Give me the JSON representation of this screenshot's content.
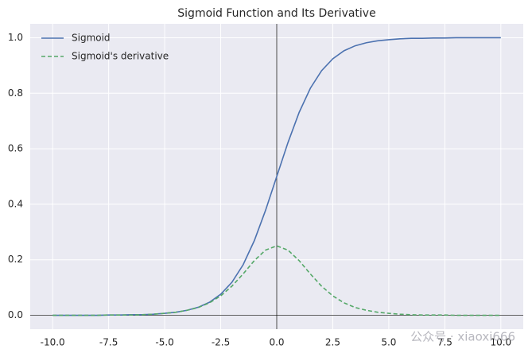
{
  "chart_data": {
    "type": "line",
    "title": "Sigmoid Function and Its Derivative",
    "x": [
      -10,
      -9.5,
      -9,
      -8.5,
      -8,
      -7.5,
      -7,
      -6.5,
      -6,
      -5.5,
      -5,
      -4.5,
      -4,
      -3.5,
      -3,
      -2.5,
      -2,
      -1.5,
      -1,
      -0.5,
      0,
      0.5,
      1,
      1.5,
      2,
      2.5,
      3,
      3.5,
      4,
      4.5,
      5,
      5.5,
      6,
      6.5,
      7,
      7.5,
      8,
      8.5,
      9,
      9.5,
      10
    ],
    "series": [
      {
        "name": "Sigmoid",
        "color": "#4c72b0",
        "linestyle": "solid",
        "values": [
          0.0,
          0.0,
          0.0,
          0.0,
          0.0,
          0.001,
          0.001,
          0.002,
          0.002,
          0.004,
          0.007,
          0.011,
          0.018,
          0.029,
          0.047,
          0.076,
          0.119,
          0.182,
          0.269,
          0.378,
          0.5,
          0.622,
          0.731,
          0.818,
          0.881,
          0.924,
          0.953,
          0.971,
          0.982,
          0.989,
          0.993,
          0.996,
          0.998,
          0.998,
          0.999,
          0.999,
          1.0,
          1.0,
          1.0,
          1.0,
          1.0
        ]
      },
      {
        "name": "Sigmoid's derivative",
        "color": "#55a868",
        "linestyle": "dashed",
        "values": [
          0.0,
          0.0,
          0.0,
          0.0,
          0.0,
          0.001,
          0.001,
          0.001,
          0.002,
          0.004,
          0.007,
          0.011,
          0.018,
          0.028,
          0.045,
          0.07,
          0.105,
          0.149,
          0.197,
          0.235,
          0.25,
          0.235,
          0.197,
          0.149,
          0.105,
          0.07,
          0.045,
          0.028,
          0.018,
          0.011,
          0.007,
          0.004,
          0.002,
          0.001,
          0.001,
          0.001,
          0.0,
          0.0,
          0.0,
          0.0,
          0.0
        ]
      }
    ],
    "xlim": [
      -11,
      11
    ],
    "ylim": [
      -0.05,
      1.05
    ],
    "xticks": [
      {
        "value": -10,
        "label": "-10.0"
      },
      -7.5,
      {
        "value": -5,
        "label": "-5.0"
      },
      -2.5,
      {
        "value": 0,
        "label": "0.0"
      },
      2.5,
      {
        "value": 5,
        "label": "5.0"
      },
      7.5,
      {
        "value": 10,
        "label": "10.0"
      }
    ],
    "yticks": [
      {
        "value": 0,
        "label": "0.0"
      },
      0.2,
      0.4,
      0.6,
      0.8,
      {
        "value": 1,
        "label": "1.0"
      }
    ],
    "grid": true,
    "legend": "upper-left",
    "background": "#eaeaf2",
    "watermark": "公众号 · xiaoxi666"
  }
}
